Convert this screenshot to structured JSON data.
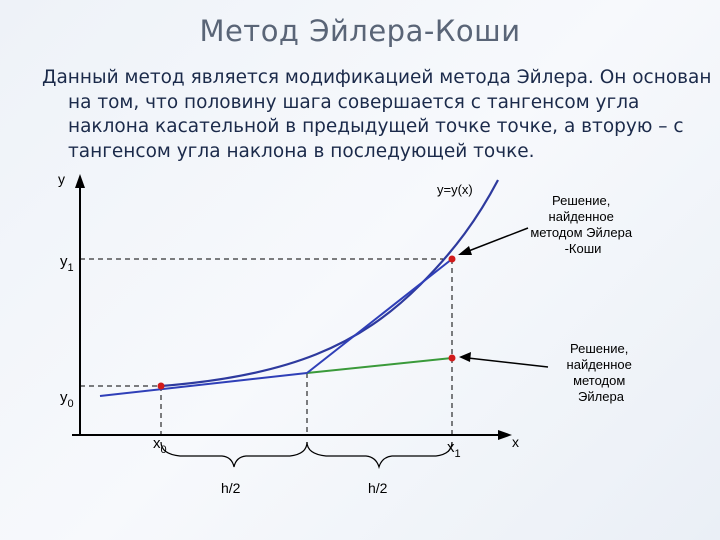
{
  "title": "Метод Эйлера-Коши",
  "description": "Данный метод является модификацией метода Эйлера. Он основан на том, что половину шага совершается с тангенсом угла наклона касательной в предыдущей точке точке, а вторую – с тангенсом угла наклона в последующей точке.",
  "diagram": {
    "y_axis_label": "y",
    "x_axis_label": "x",
    "curve_label": "y=y(x)",
    "y0": "y",
    "y0_sub": "0",
    "y1": "y",
    "y1_sub": "1",
    "x0": "x",
    "x0_sub": "0",
    "x1": "x",
    "x1_sub": "1",
    "half_step_1": "h/2",
    "half_step_2": "h/2",
    "euler_cauchy_note": [
      "Решение,",
      "найденное",
      "методом Эйлера",
      "-Коши"
    ],
    "euler_note": [
      "Решение,",
      "найденное",
      "методом",
      "Эйлера"
    ],
    "colors": {
      "curve": "#2e3a9e",
      "tangent_lines": "#2f3fb8",
      "euler_line": "#3a9a3a",
      "points": "#d11a1a"
    }
  }
}
